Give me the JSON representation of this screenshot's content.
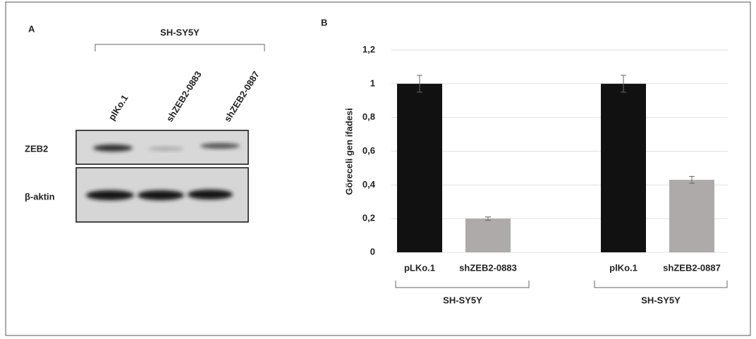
{
  "panel_a": {
    "label": "A",
    "cell_line": "SH-SY5Y",
    "lanes": [
      "plKo.1",
      "shZEB2-0883",
      "shZEB2-0887"
    ],
    "rows": [
      "ZEB2",
      "β-aktin"
    ]
  },
  "chart_data": {
    "type": "bar",
    "panel_label": "B",
    "y_label": "Göreceli gen ifadesi",
    "categories": [
      "pLKo.1",
      "shZEB2-0883",
      "plKo.1",
      "shZEB2-0887"
    ],
    "values": [
      1,
      0.2,
      1,
      0.43
    ],
    "errors": [
      0.05,
      0.01,
      0.05,
      0.02
    ],
    "colors": [
      "#111111",
      "#aeaaa9",
      "#111111",
      "#aeaaa9"
    ],
    "group_labels": [
      "SH-SY5Y",
      "SH-SY5Y"
    ],
    "ylim": [
      0,
      1.2
    ],
    "yticks": [
      0,
      {
        "value": 0.2,
        "label": "0,2"
      },
      {
        "value": 0.4,
        "label": "0,4"
      },
      {
        "value": 0.6,
        "label": "0,6"
      },
      {
        "value": 0.8,
        "label": "0,8"
      },
      1,
      {
        "value": 1.2,
        "label": "1,2"
      }
    ],
    "grid": true
  }
}
